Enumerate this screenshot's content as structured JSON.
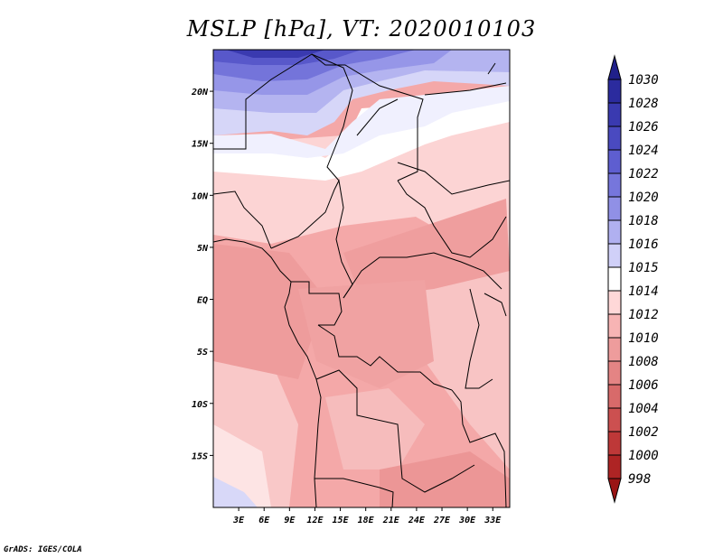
{
  "title": "MSLP [hPa], VT: 2020010103",
  "footer": "GrADS: IGES/COLA",
  "map": {
    "lon_range": [
      0,
      35
    ],
    "lat_range": [
      -20,
      24
    ],
    "lon_ticks": [
      "3E",
      "6E",
      "9E",
      "12E",
      "15E",
      "18E",
      "21E",
      "24E",
      "27E",
      "30E",
      "33E"
    ],
    "lat_ticks": [
      "20N",
      "15N",
      "10N",
      "5N",
      "EQ",
      "5S",
      "10S",
      "15S"
    ],
    "field": "mean sea level pressure"
  },
  "colorbar": {
    "labels": [
      "1030",
      "1028",
      "1026",
      "1024",
      "1022",
      "1020",
      "1018",
      "1016",
      "1015",
      "1014",
      "1012",
      "1010",
      "1008",
      "1006",
      "1004",
      "1002",
      "1000",
      "998"
    ],
    "colors": [
      "#20208a",
      "#2b2b9e",
      "#3a3ab0",
      "#4a4ac0",
      "#5e5ed0",
      "#7676dc",
      "#9090e6",
      "#b0b0f0",
      "#d0d0f8",
      "#ffffff",
      "#ffd8d8",
      "#f7b4b4",
      "#ee9c9c",
      "#e48484",
      "#d86a6a",
      "#cc5050",
      "#be3838",
      "#ae2424",
      "#9a1414"
    ]
  }
}
